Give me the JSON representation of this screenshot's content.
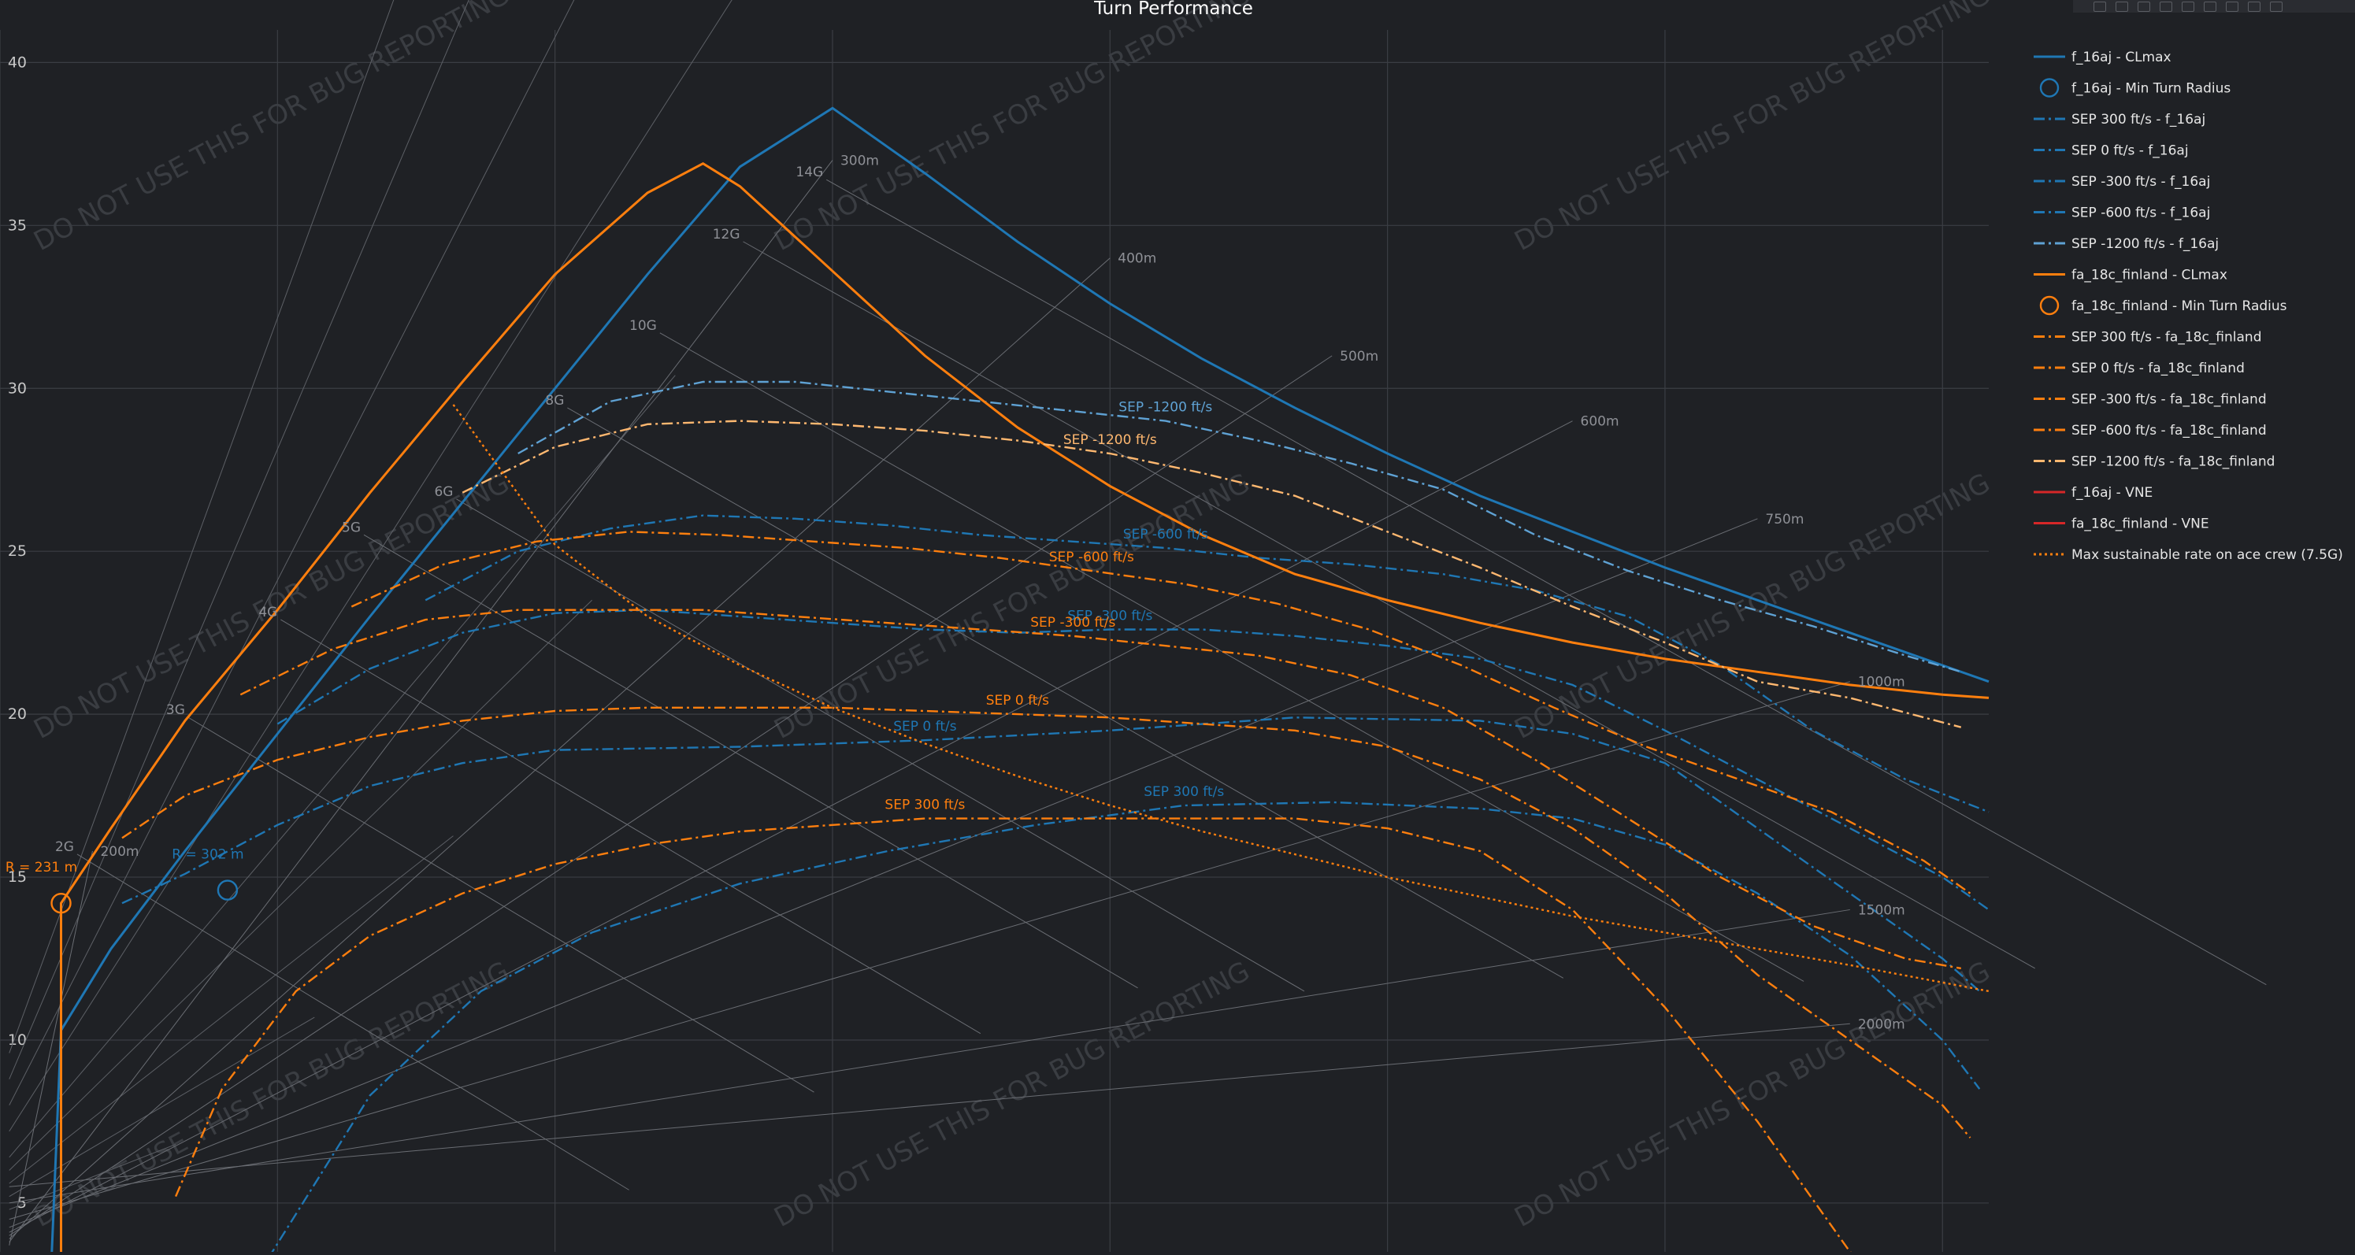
{
  "chart_data": {
    "type": "line",
    "title": "Turn Performance",
    "xlabel": "",
    "ylabel": "",
    "xlim": [
      0,
      1075
    ],
    "ylim": [
      3.5,
      41
    ],
    "yticks": [
      5,
      10,
      15,
      20,
      25,
      30,
      35,
      40
    ],
    "grid": true,
    "legend_position": "right",
    "watermark": "DO NOT USE THIS FOR BUG REPORTING",
    "g_lines": [
      {
        "label": "2G",
        "g": 2
      },
      {
        "label": "3G",
        "g": 3
      },
      {
        "label": "4G",
        "g": 4
      },
      {
        "label": "5G",
        "g": 5
      },
      {
        "label": "6G",
        "g": 6
      },
      {
        "label": "8G",
        "g": 8
      },
      {
        "label": "10G",
        "g": 10
      },
      {
        "label": "12G",
        "g": 12
      },
      {
        "label": "14G",
        "g": 14
      }
    ],
    "radius_lines": [
      {
        "label": "200m",
        "r": 200
      },
      {
        "label": "300m",
        "r": 300
      },
      {
        "label": "400m",
        "r": 400
      },
      {
        "label": "500m",
        "r": 500
      },
      {
        "label": "600m",
        "r": 600
      },
      {
        "label": "750m",
        "r": 750
      },
      {
        "label": "1000m",
        "r": 1000
      },
      {
        "label": "1500m",
        "r": 1500
      },
      {
        "label": "2000m",
        "r": 2000
      }
    ],
    "series": [
      {
        "name": "f_16aj - CLmax",
        "color": "#1f77b4",
        "style": "solid",
        "x": [
          28,
          33,
          60,
          100,
          150,
          200,
          250,
          300,
          350,
          400,
          450,
          500,
          550,
          600,
          650,
          700,
          750,
          800,
          850,
          900,
          950,
          1000,
          1050,
          1075
        ],
        "y": [
          3.5,
          10.3,
          12.8,
          15.8,
          19.4,
          23.0,
          26.5,
          30.0,
          33.5,
          36.8,
          38.6,
          36.6,
          34.5,
          32.6,
          30.9,
          29.4,
          28.0,
          26.7,
          25.6,
          24.5,
          23.5,
          22.5,
          21.5,
          21.0
        ]
      },
      {
        "name": "f_16aj - Min Turn Radius",
        "color": "#1f77b4",
        "marker": "circle",
        "x": [
          123
        ],
        "y": [
          14.6
        ],
        "annotation": "R = 302 m"
      },
      {
        "name": "SEP 300 ft/s - f_16aj",
        "color": "#1f77b4",
        "style": "dashdot",
        "label": "SEP 300 ft/s",
        "x": [
          145,
          200,
          260,
          320,
          400,
          480,
          560,
          640,
          720,
          800,
          850,
          900,
          950,
          1000,
          1050,
          1070
        ],
        "y": [
          3.3,
          8.3,
          11.5,
          13.3,
          14.8,
          15.8,
          16.6,
          17.2,
          17.3,
          17.1,
          16.8,
          16.0,
          14.5,
          12.6,
          10.0,
          8.5
        ]
      },
      {
        "name": "SEP 0 ft/s - f_16aj",
        "color": "#1f77b4",
        "style": "dashdot",
        "label": "SEP 0 ft/s",
        "x": [
          66,
          100,
          150,
          200,
          250,
          300,
          400,
          500,
          600,
          700,
          800,
          850,
          900,
          950,
          1000,
          1050,
          1070
        ],
        "y": [
          14.2,
          15.1,
          16.6,
          17.8,
          18.5,
          18.9,
          19.0,
          19.2,
          19.5,
          19.9,
          19.8,
          19.4,
          18.5,
          16.5,
          14.5,
          12.5,
          11.5
        ]
      },
      {
        "name": "SEP -300 ft/s - f_16aj",
        "color": "#1f77b4",
        "style": "dashdot",
        "label": "SEP -300 ft/s",
        "x": [
          150,
          200,
          250,
          300,
          350,
          400,
          450,
          500,
          550,
          600,
          650,
          700,
          750,
          800,
          850,
          900,
          950,
          1000,
          1050,
          1075
        ],
        "y": [
          19.7,
          21.4,
          22.5,
          23.1,
          23.2,
          23.0,
          22.8,
          22.6,
          22.5,
          22.6,
          22.6,
          22.4,
          22.1,
          21.7,
          20.9,
          19.5,
          18.0,
          16.5,
          15.0,
          14.0
        ]
      },
      {
        "name": "SEP -600 ft/s - f_16aj",
        "color": "#1f77b4",
        "style": "dashdot",
        "label": "SEP -600 ft/s",
        "x": [
          230,
          280,
          330,
          380,
          430,
          480,
          530,
          580,
          630,
          680,
          730,
          780,
          830,
          880,
          930,
          980,
          1030,
          1075
        ],
        "y": [
          23.5,
          25.0,
          25.7,
          26.1,
          26.0,
          25.8,
          25.5,
          25.3,
          25.1,
          24.8,
          24.6,
          24.3,
          23.8,
          23.0,
          21.5,
          19.5,
          18.0,
          17.0
        ]
      },
      {
        "name": "SEP -1200 ft/s - f_16aj",
        "color": "#5fa2d4",
        "style": "dashdot",
        "label": "SEP -1200 ft/s",
        "x": [
          280,
          330,
          380,
          430,
          480,
          530,
          580,
          630,
          680,
          730,
          780,
          830,
          880,
          930,
          980,
          1030,
          1060
        ],
        "y": [
          28.0,
          29.6,
          30.2,
          30.2,
          29.9,
          29.6,
          29.3,
          29.0,
          28.4,
          27.7,
          26.9,
          25.5,
          24.4,
          23.5,
          22.7,
          21.8,
          21.3
        ]
      },
      {
        "name": "fa_18c_finland - CLmax",
        "color": "#ff7f0e",
        "style": "solid",
        "x": [
          33,
          33,
          60,
          100,
          150,
          200,
          250,
          300,
          350,
          380,
          400,
          450,
          500,
          550,
          600,
          650,
          700,
          750,
          800,
          850,
          900,
          950,
          1000,
          1050,
          1075
        ],
        "y": [
          3.5,
          14.2,
          16.5,
          19.8,
          23.2,
          26.8,
          30.2,
          33.5,
          36.0,
          36.9,
          36.2,
          33.6,
          31.0,
          28.8,
          27.0,
          25.5,
          24.3,
          23.5,
          22.8,
          22.2,
          21.7,
          21.3,
          20.9,
          20.6,
          20.5
        ]
      },
      {
        "name": "fa_18c_finland - Min Turn Radius",
        "color": "#ff7f0e",
        "marker": "circle",
        "x": [
          33
        ],
        "y": [
          14.2
        ],
        "annotation": "R = 231 m"
      },
      {
        "name": "SEP 300 ft/s - fa_18c_finland",
        "color": "#ff7f0e",
        "style": "dashdot",
        "label": "SEP 300 ft/s",
        "x": [
          95,
          120,
          160,
          200,
          250,
          300,
          350,
          400,
          450,
          500,
          550,
          600,
          650,
          700,
          750,
          800,
          850,
          900,
          950,
          1000,
          1040
        ],
        "y": [
          5.2,
          8.5,
          11.5,
          13.2,
          14.5,
          15.4,
          16.0,
          16.4,
          16.6,
          16.8,
          16.8,
          16.8,
          16.8,
          16.8,
          16.5,
          15.8,
          14.0,
          11.0,
          7.5,
          3.5,
          1.8
        ]
      },
      {
        "name": "SEP 0 ft/s - fa_18c_finland",
        "color": "#ff7f0e",
        "style": "dashdot",
        "label": "SEP 0 ft/s",
        "x": [
          66,
          100,
          150,
          200,
          250,
          300,
          350,
          400,
          450,
          500,
          550,
          600,
          650,
          700,
          750,
          800,
          850,
          900,
          950,
          1000,
          1050,
          1065
        ],
        "y": [
          16.2,
          17.5,
          18.6,
          19.3,
          19.8,
          20.1,
          20.2,
          20.2,
          20.2,
          20.1,
          20.0,
          19.9,
          19.7,
          19.5,
          19.0,
          18.0,
          16.5,
          14.5,
          12.0,
          10.0,
          8.0,
          7.0
        ]
      },
      {
        "name": "SEP -300 ft/s - fa_18c_finland",
        "color": "#ff7f0e",
        "style": "dashdot",
        "label": "SEP -300 ft/s",
        "x": [
          130,
          180,
          230,
          280,
          330,
          380,
          430,
          480,
          530,
          580,
          630,
          680,
          730,
          780,
          830,
          880,
          930,
          980,
          1030,
          1060
        ],
        "y": [
          20.6,
          22.0,
          22.9,
          23.2,
          23.2,
          23.2,
          23.0,
          22.8,
          22.6,
          22.4,
          22.1,
          21.8,
          21.2,
          20.2,
          18.6,
          16.8,
          15.0,
          13.5,
          12.5,
          12.2
        ]
      },
      {
        "name": "SEP -600 ft/s - fa_18c_finland",
        "color": "#ff7f0e",
        "style": "dashdot",
        "label": "SEP -600 ft/s",
        "x": [
          190,
          240,
          290,
          340,
          390,
          440,
          490,
          540,
          590,
          640,
          690,
          740,
          790,
          840,
          890,
          940,
          990,
          1040,
          1065
        ],
        "y": [
          23.3,
          24.6,
          25.3,
          25.6,
          25.5,
          25.3,
          25.1,
          24.8,
          24.4,
          24.0,
          23.4,
          22.6,
          21.5,
          20.2,
          19.0,
          18.0,
          17.0,
          15.5,
          14.5
        ]
      },
      {
        "name": "SEP -1200 ft/s - fa_18c_finland",
        "color": "#ffb870",
        "style": "dashdot",
        "label": "SEP -1200 ft/s",
        "x": [
          250,
          300,
          350,
          400,
          450,
          500,
          550,
          600,
          650,
          700,
          750,
          800,
          850,
          900,
          950,
          1000,
          1060
        ],
        "y": [
          26.8,
          28.2,
          28.9,
          29.0,
          28.9,
          28.7,
          28.4,
          28.0,
          27.4,
          26.7,
          25.6,
          24.5,
          23.3,
          22.2,
          21.0,
          20.5,
          19.6
        ]
      },
      {
        "name": "f_16aj - VNE",
        "color": "#d62728",
        "style": "solid",
        "x": [],
        "y": []
      },
      {
        "name": "fa_18c_finland - VNE",
        "color": "#d62728",
        "style": "solid",
        "x": [],
        "y": []
      },
      {
        "name": "Max sustainable rate on ace crew (7.5G)",
        "color": "#ff7f0e",
        "style": "dotted",
        "x": [
          245,
          300,
          350,
          400,
          450,
          500,
          550,
          600,
          650,
          700,
          750,
          800,
          850,
          900,
          950,
          1000,
          1075
        ],
        "y": [
          29.5,
          25.2,
          23.0,
          21.5,
          20.2,
          19.1,
          18.1,
          17.2,
          16.4,
          15.7,
          15.0,
          14.4,
          13.8,
          13.3,
          12.8,
          12.3,
          11.5
        ]
      }
    ]
  }
}
